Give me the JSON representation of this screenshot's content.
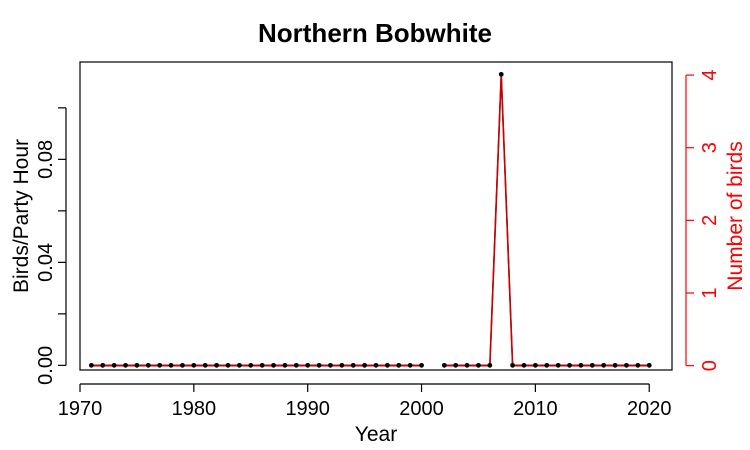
{
  "chart_data": {
    "type": "line",
    "title": "Northern Bobwhite",
    "xlabel": "Year",
    "ylabel": "Birds/Party Hour",
    "ylabel_right": "Number of birds",
    "x_ticks": [
      "1970",
      "1980",
      "1990",
      "2000",
      "2010",
      "2020"
    ],
    "y_ticks": [
      "0.00",
      "0.04",
      "0.08"
    ],
    "y_right_ticks": [
      "0",
      "1",
      "2",
      "3",
      "4"
    ],
    "xlim": [
      1970,
      2022
    ],
    "ylim": [
      -0.0018,
      0.1178
    ],
    "ylim_right": [
      -0.06,
      4.18
    ],
    "grid": false,
    "colors": {
      "birds_per_party_hour": "#000000",
      "number_of_birds": "#cc0000",
      "right_axis": "#ff0000"
    },
    "series": [
      {
        "axis": "left",
        "x": [
          1971,
          1972,
          1973,
          1974,
          1975,
          1976,
          1977,
          1978,
          1979,
          1980,
          1981,
          1982,
          1983,
          1984,
          1985,
          1986,
          1987,
          1988,
          1989,
          1990,
          1991,
          1992,
          1993,
          1994,
          1995,
          1996,
          1997,
          1998,
          1999,
          2000,
          2002,
          2003,
          2004,
          2005,
          2006,
          2007,
          2008,
          2009,
          2010,
          2011,
          2012,
          2013,
          2014,
          2015,
          2016,
          2017,
          2018,
          2019,
          2020
        ],
        "values": [
          0,
          0,
          0,
          0,
          0,
          0,
          0,
          0,
          0,
          0,
          0,
          0,
          0,
          0,
          0,
          0,
          0,
          0,
          0,
          0,
          0,
          0,
          0,
          0,
          0,
          0,
          0,
          0,
          0,
          0,
          0,
          0,
          0,
          0,
          0,
          0.113,
          0,
          0,
          0,
          0,
          0,
          0,
          0,
          0,
          0,
          0,
          0,
          0,
          0
        ]
      },
      {
        "axis": "right",
        "x": [
          1971,
          1972,
          1973,
          1974,
          1975,
          1976,
          1977,
          1978,
          1979,
          1980,
          1981,
          1982,
          1983,
          1984,
          1985,
          1986,
          1987,
          1988,
          1989,
          1990,
          1991,
          1992,
          1993,
          1994,
          1995,
          1996,
          1997,
          1998,
          1999,
          2000,
          2002,
          2003,
          2004,
          2005,
          2006,
          2007,
          2008,
          2009,
          2010,
          2011,
          2012,
          2013,
          2014,
          2015,
          2016,
          2017,
          2018,
          2019,
          2020
        ],
        "values": [
          0,
          0,
          0,
          0,
          0,
          0,
          0,
          0,
          0,
          0,
          0,
          0,
          0,
          0,
          0,
          0,
          0,
          0,
          0,
          0,
          0,
          0,
          0,
          0,
          0,
          0,
          0,
          0,
          0,
          0,
          0,
          0,
          0,
          0,
          0,
          4,
          0,
          0,
          0,
          0,
          0,
          0,
          0,
          0,
          0,
          0,
          0,
          0,
          0
        ]
      }
    ]
  }
}
